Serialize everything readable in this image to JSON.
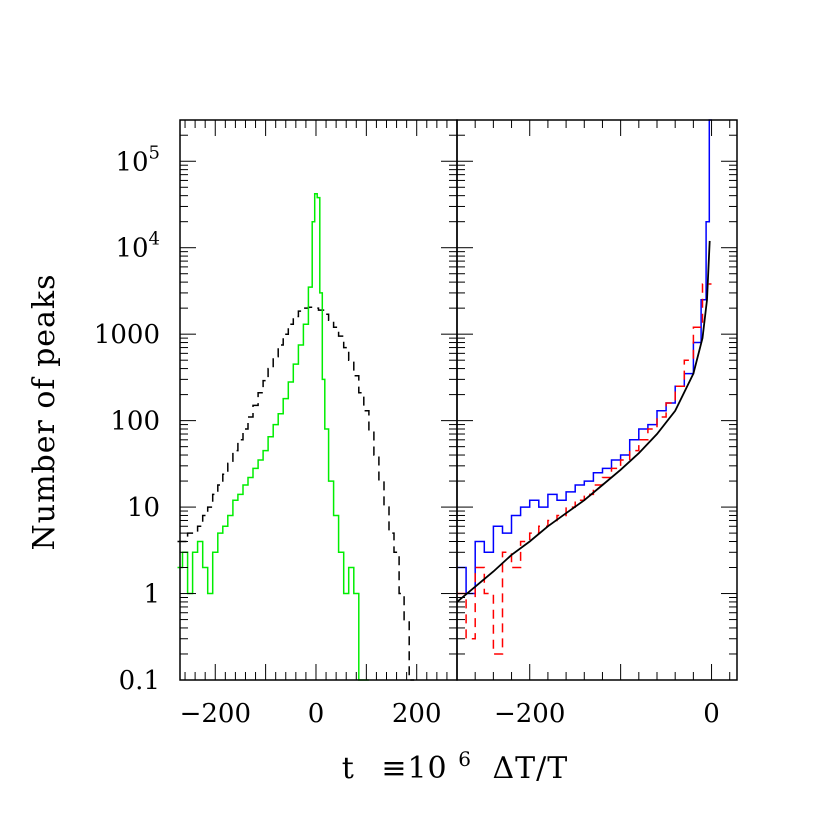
{
  "chart_data": [
    {
      "type": "line",
      "panel": "left",
      "xlim": [
        -270,
        280
      ],
      "ylim": [
        0.1,
        300000
      ],
      "yscale": "log",
      "y_tick_values": [
        0.1,
        1,
        10,
        100,
        1000,
        10000,
        100000
      ],
      "y_tick_labels": [
        {
          "mantissa": "0.1",
          "exp": ""
        },
        {
          "mantissa": "1",
          "exp": ""
        },
        {
          "mantissa": "10",
          "exp": ""
        },
        {
          "mantissa": "100",
          "exp": ""
        },
        {
          "mantissa": "1000",
          "exp": ""
        },
        {
          "mantissa": "10",
          "exp": "4"
        },
        {
          "mantissa": "10",
          "exp": "5"
        }
      ],
      "x_tick_values": [
        -200,
        0,
        200
      ],
      "x_tick_labels": [
        "−200",
        "0",
        "200"
      ],
      "ylabel": "Number of peaks",
      "series": [
        {
          "style": "black dashed step",
          "color": "#000000",
          "x": [
            -270,
            -260,
            -250,
            -240,
            -230,
            -220,
            -210,
            -200,
            -190,
            -180,
            -170,
            -160,
            -150,
            -140,
            -130,
            -120,
            -110,
            -100,
            -90,
            -80,
            -70,
            -60,
            -50,
            -40,
            -30,
            -20,
            -10,
            0,
            10,
            20,
            30,
            40,
            50,
            60,
            70,
            80,
            90,
            100,
            110,
            120,
            130,
            140,
            150,
            160,
            170,
            180,
            190
          ],
          "y": [
            4,
            4,
            5,
            5,
            6,
            8,
            10,
            14,
            18,
            24,
            32,
            45,
            60,
            80,
            110,
            150,
            210,
            290,
            400,
            550,
            750,
            1000,
            1300,
            1600,
            1850,
            2000,
            2050,
            2000,
            1900,
            1700,
            1450,
            1200,
            950,
            700,
            500,
            330,
            210,
            130,
            75,
            40,
            20,
            10,
            5,
            3,
            1,
            0.5,
            0.1
          ]
        },
        {
          "style": "green solid step",
          "color": "#00ee00",
          "x": [
            -270,
            -260,
            -250,
            -240,
            -230,
            -220,
            -210,
            -200,
            -190,
            -180,
            -170,
            -160,
            -150,
            -140,
            -130,
            -120,
            -110,
            -100,
            -90,
            -80,
            -70,
            -60,
            -50,
            -40,
            -30,
            -20,
            -10,
            -5,
            0,
            5,
            10,
            15,
            20,
            30,
            40,
            50,
            60,
            70,
            80,
            90,
            100
          ],
          "y": [
            2,
            3,
            1,
            3,
            4,
            2,
            1,
            3,
            5,
            6,
            8,
            12,
            14,
            18,
            22,
            28,
            35,
            45,
            65,
            90,
            120,
            180,
            280,
            450,
            750,
            1300,
            3500,
            20000,
            42000,
            38000,
            3000,
            300,
            80,
            20,
            8,
            3,
            1,
            2,
            1,
            0.1,
            0.1
          ]
        }
      ]
    },
    {
      "type": "line",
      "panel": "right",
      "xlim": [
        -280,
        28
      ],
      "ylim": [
        0.1,
        300000
      ],
      "yscale": "log",
      "x_tick_values": [
        -200,
        0
      ],
      "x_tick_labels": [
        "−200",
        "0"
      ],
      "xlabel_parts": {
        "t": "t",
        "eq": "≡10",
        "exp": "6",
        "rest": "ΔT/T"
      },
      "series": [
        {
          "style": "blue solid step",
          "color": "#0000ff",
          "x": [
            -275,
            -265,
            -255,
            -245,
            -235,
            -225,
            -215,
            -205,
            -195,
            -185,
            -175,
            -165,
            -155,
            -145,
            -135,
            -125,
            -115,
            -105,
            -95,
            -85,
            -75,
            -65,
            -55,
            -45,
            -35,
            -25,
            -15,
            -8,
            -4,
            -1
          ],
          "y": [
            2,
            1,
            4,
            3,
            6,
            5,
            8,
            10,
            12,
            10,
            14,
            12,
            15,
            18,
            20,
            25,
            28,
            35,
            40,
            60,
            80,
            90,
            130,
            160,
            250,
            350,
            800,
            2500,
            20000,
            300000
          ]
        },
        {
          "style": "red dashed step",
          "color": "#ff0000",
          "x": [
            -275,
            -265,
            -255,
            -245,
            -235,
            -225,
            -215,
            -205,
            -195,
            -185,
            -175,
            -165,
            -155,
            -145,
            -135,
            -125,
            -115,
            -105,
            -95,
            -85,
            -75,
            -65,
            -55,
            -45,
            -35,
            -25,
            -15,
            -5
          ],
          "y": [
            1,
            0.3,
            2,
            1,
            0.2,
            3,
            2,
            4,
            5,
            6,
            7,
            8,
            10,
            12,
            14,
            18,
            22,
            28,
            35,
            45,
            60,
            80,
            110,
            160,
            250,
            500,
            1200,
            3800
          ]
        },
        {
          "style": "black smooth curve",
          "color": "#000000",
          "x": [
            -280,
            -260,
            -240,
            -220,
            -200,
            -180,
            -160,
            -140,
            -120,
            -100,
            -80,
            -60,
            -40,
            -20,
            -10,
            -5,
            -2
          ],
          "y": [
            0.8,
            1.2,
            1.8,
            2.8,
            4,
            6,
            8.5,
            12,
            18,
            27,
            42,
            70,
            130,
            350,
            900,
            2500,
            12000
          ]
        }
      ]
    }
  ]
}
